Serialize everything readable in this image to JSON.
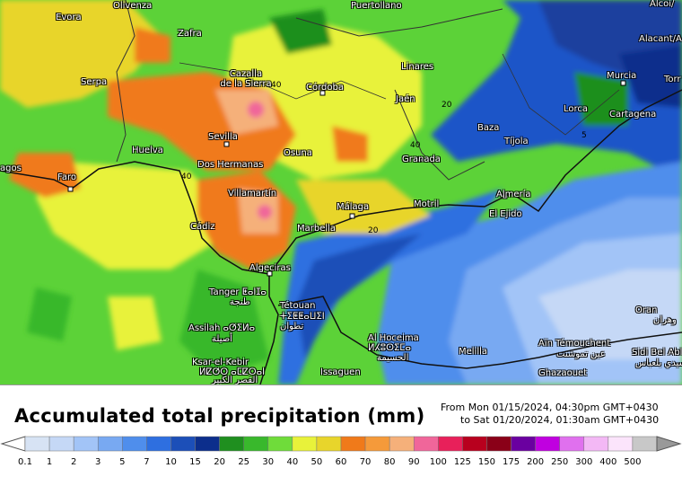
{
  "title": "Accumulated total precipitation (mm)",
  "period": {
    "from": "From Mon 01/15/2024, 04:30pm GMT+0430",
    "to": "to Sat 01/20/2024, 01:30am GMT+0430"
  },
  "cities": [
    {
      "id": "evora",
      "name": "Evora"
    },
    {
      "id": "olivenza",
      "name": "Olivenza"
    },
    {
      "id": "puertollano",
      "name": "Puertollano"
    },
    {
      "id": "alcoi",
      "name": "Alcoi/"
    },
    {
      "id": "zafra",
      "name": "Zafra"
    },
    {
      "id": "alacant",
      "name": "Alacant/A"
    },
    {
      "id": "linares",
      "name": "Linares"
    },
    {
      "id": "murcia",
      "name": "Murcia"
    },
    {
      "id": "torrevieja",
      "name": "Torr"
    },
    {
      "id": "serpa",
      "name": "Serpa"
    },
    {
      "id": "cazalla",
      "name": "Cazalla\nde la Sierra"
    },
    {
      "id": "cordoba",
      "name": "Córdoba"
    },
    {
      "id": "jaen",
      "name": "Jaén"
    },
    {
      "id": "lorca",
      "name": "Lorca"
    },
    {
      "id": "cartagena",
      "name": "Cartagena"
    },
    {
      "id": "baza",
      "name": "Baza"
    },
    {
      "id": "sevilla",
      "name": "Sevilla"
    },
    {
      "id": "tijola",
      "name": "Tíjola"
    },
    {
      "id": "huelva",
      "name": "Huelva"
    },
    {
      "id": "osuna",
      "name": "Osuna"
    },
    {
      "id": "granada",
      "name": "Granada"
    },
    {
      "id": "lagos",
      "name": "agos"
    },
    {
      "id": "dos_hermanas",
      "name": "Dos Hermanas"
    },
    {
      "id": "faro",
      "name": "Faro"
    },
    {
      "id": "villamartin",
      "name": "Villamartín"
    },
    {
      "id": "almeria",
      "name": "Almería"
    },
    {
      "id": "malaga",
      "name": "Málaga"
    },
    {
      "id": "motril",
      "name": "Motril"
    },
    {
      "id": "el_ejido",
      "name": "El Ejido"
    },
    {
      "id": "cadiz",
      "name": "Cádiz"
    },
    {
      "id": "marbella",
      "name": "Marbella"
    },
    {
      "id": "algeciras",
      "name": "Algeciras"
    },
    {
      "id": "tanger",
      "name": "Tanger ⵟⴰⵏⵊⴰ"
    },
    {
      "id": "tanger_ar",
      "name": "طنجة"
    },
    {
      "id": "tetouan",
      "name": "Tétouan"
    },
    {
      "id": "tetouan_tz",
      "name": "ⵜⵉⵟⵟⴰⵡⵉⵏ"
    },
    {
      "id": "tetouan_ar",
      "name": "تطوان"
    },
    {
      "id": "oran",
      "name": "Oran"
    },
    {
      "id": "oran_ar",
      "name": "وهران"
    },
    {
      "id": "assilah",
      "name": "Assilah ⴰⵚⵉⵍⴰ"
    },
    {
      "id": "assilah_ar",
      "name": "أصيلة"
    },
    {
      "id": "alhoceima",
      "name": "Al Hoceima"
    },
    {
      "id": "alhoceima_tz",
      "name": "ⵍⵃⵓⵙⵉⵎⴰ"
    },
    {
      "id": "alhoceima_ar",
      "name": "الحسيمة"
    },
    {
      "id": "melilla",
      "name": "Melilla"
    },
    {
      "id": "ain_temouchent",
      "name": "Aïn Témouchent"
    },
    {
      "id": "ain_temouchent_ar",
      "name": "عين تموشنت"
    },
    {
      "id": "sidi_bel_abbes",
      "name": "Sidi Bel Abl"
    },
    {
      "id": "sidi_bel_abbes_ar",
      "name": "سيدي بلعباس"
    },
    {
      "id": "ksar",
      "name": "Ksar-el-Kebir"
    },
    {
      "id": "ksar_tz",
      "name": "ⵍⵇⵚⵔ ⴰⵎⵇⵔⴰⵏ"
    },
    {
      "id": "ksar_ar",
      "name": "القصر الكبير"
    },
    {
      "id": "issaguen",
      "name": "Issaguen"
    },
    {
      "id": "ghazaouet",
      "name": "Ghazaouet"
    }
  ],
  "contour_labels": [
    {
      "id": "c40a",
      "value": "40"
    },
    {
      "id": "c20a",
      "value": "20"
    },
    {
      "id": "c40b",
      "value": "40"
    },
    {
      "id": "c5a",
      "value": "5"
    },
    {
      "id": "c40c",
      "value": "40"
    },
    {
      "id": "c20b",
      "value": "20"
    }
  ],
  "legend": {
    "labels": [
      "0.1",
      "1",
      "2",
      "3",
      "5",
      "7",
      "10",
      "15",
      "20",
      "25",
      "30",
      "40",
      "50",
      "60",
      "70",
      "80",
      "90",
      "100",
      "125",
      "150",
      "175",
      "200",
      "250",
      "300",
      "400",
      "500"
    ],
    "colors": [
      "#d7e3f4",
      "#c5d8f6",
      "#a2c4f7",
      "#78a9f2",
      "#4f8eec",
      "#2e6fe0",
      "#1c4fb8",
      "#0c2e8c",
      "#1f8f1f",
      "#39b82c",
      "#6fdc3a",
      "#e8f23a",
      "#e8d52b",
      "#f07a1a",
      "#f59a3a",
      "#f5b07a",
      "#f0669a",
      "#e8205a",
      "#b8001e",
      "#8a0018",
      "#6a00a0",
      "#c000e0",
      "#e070ee",
      "#f3b8f5",
      "#fbe4fb",
      "#c8c8c8"
    ]
  }
}
